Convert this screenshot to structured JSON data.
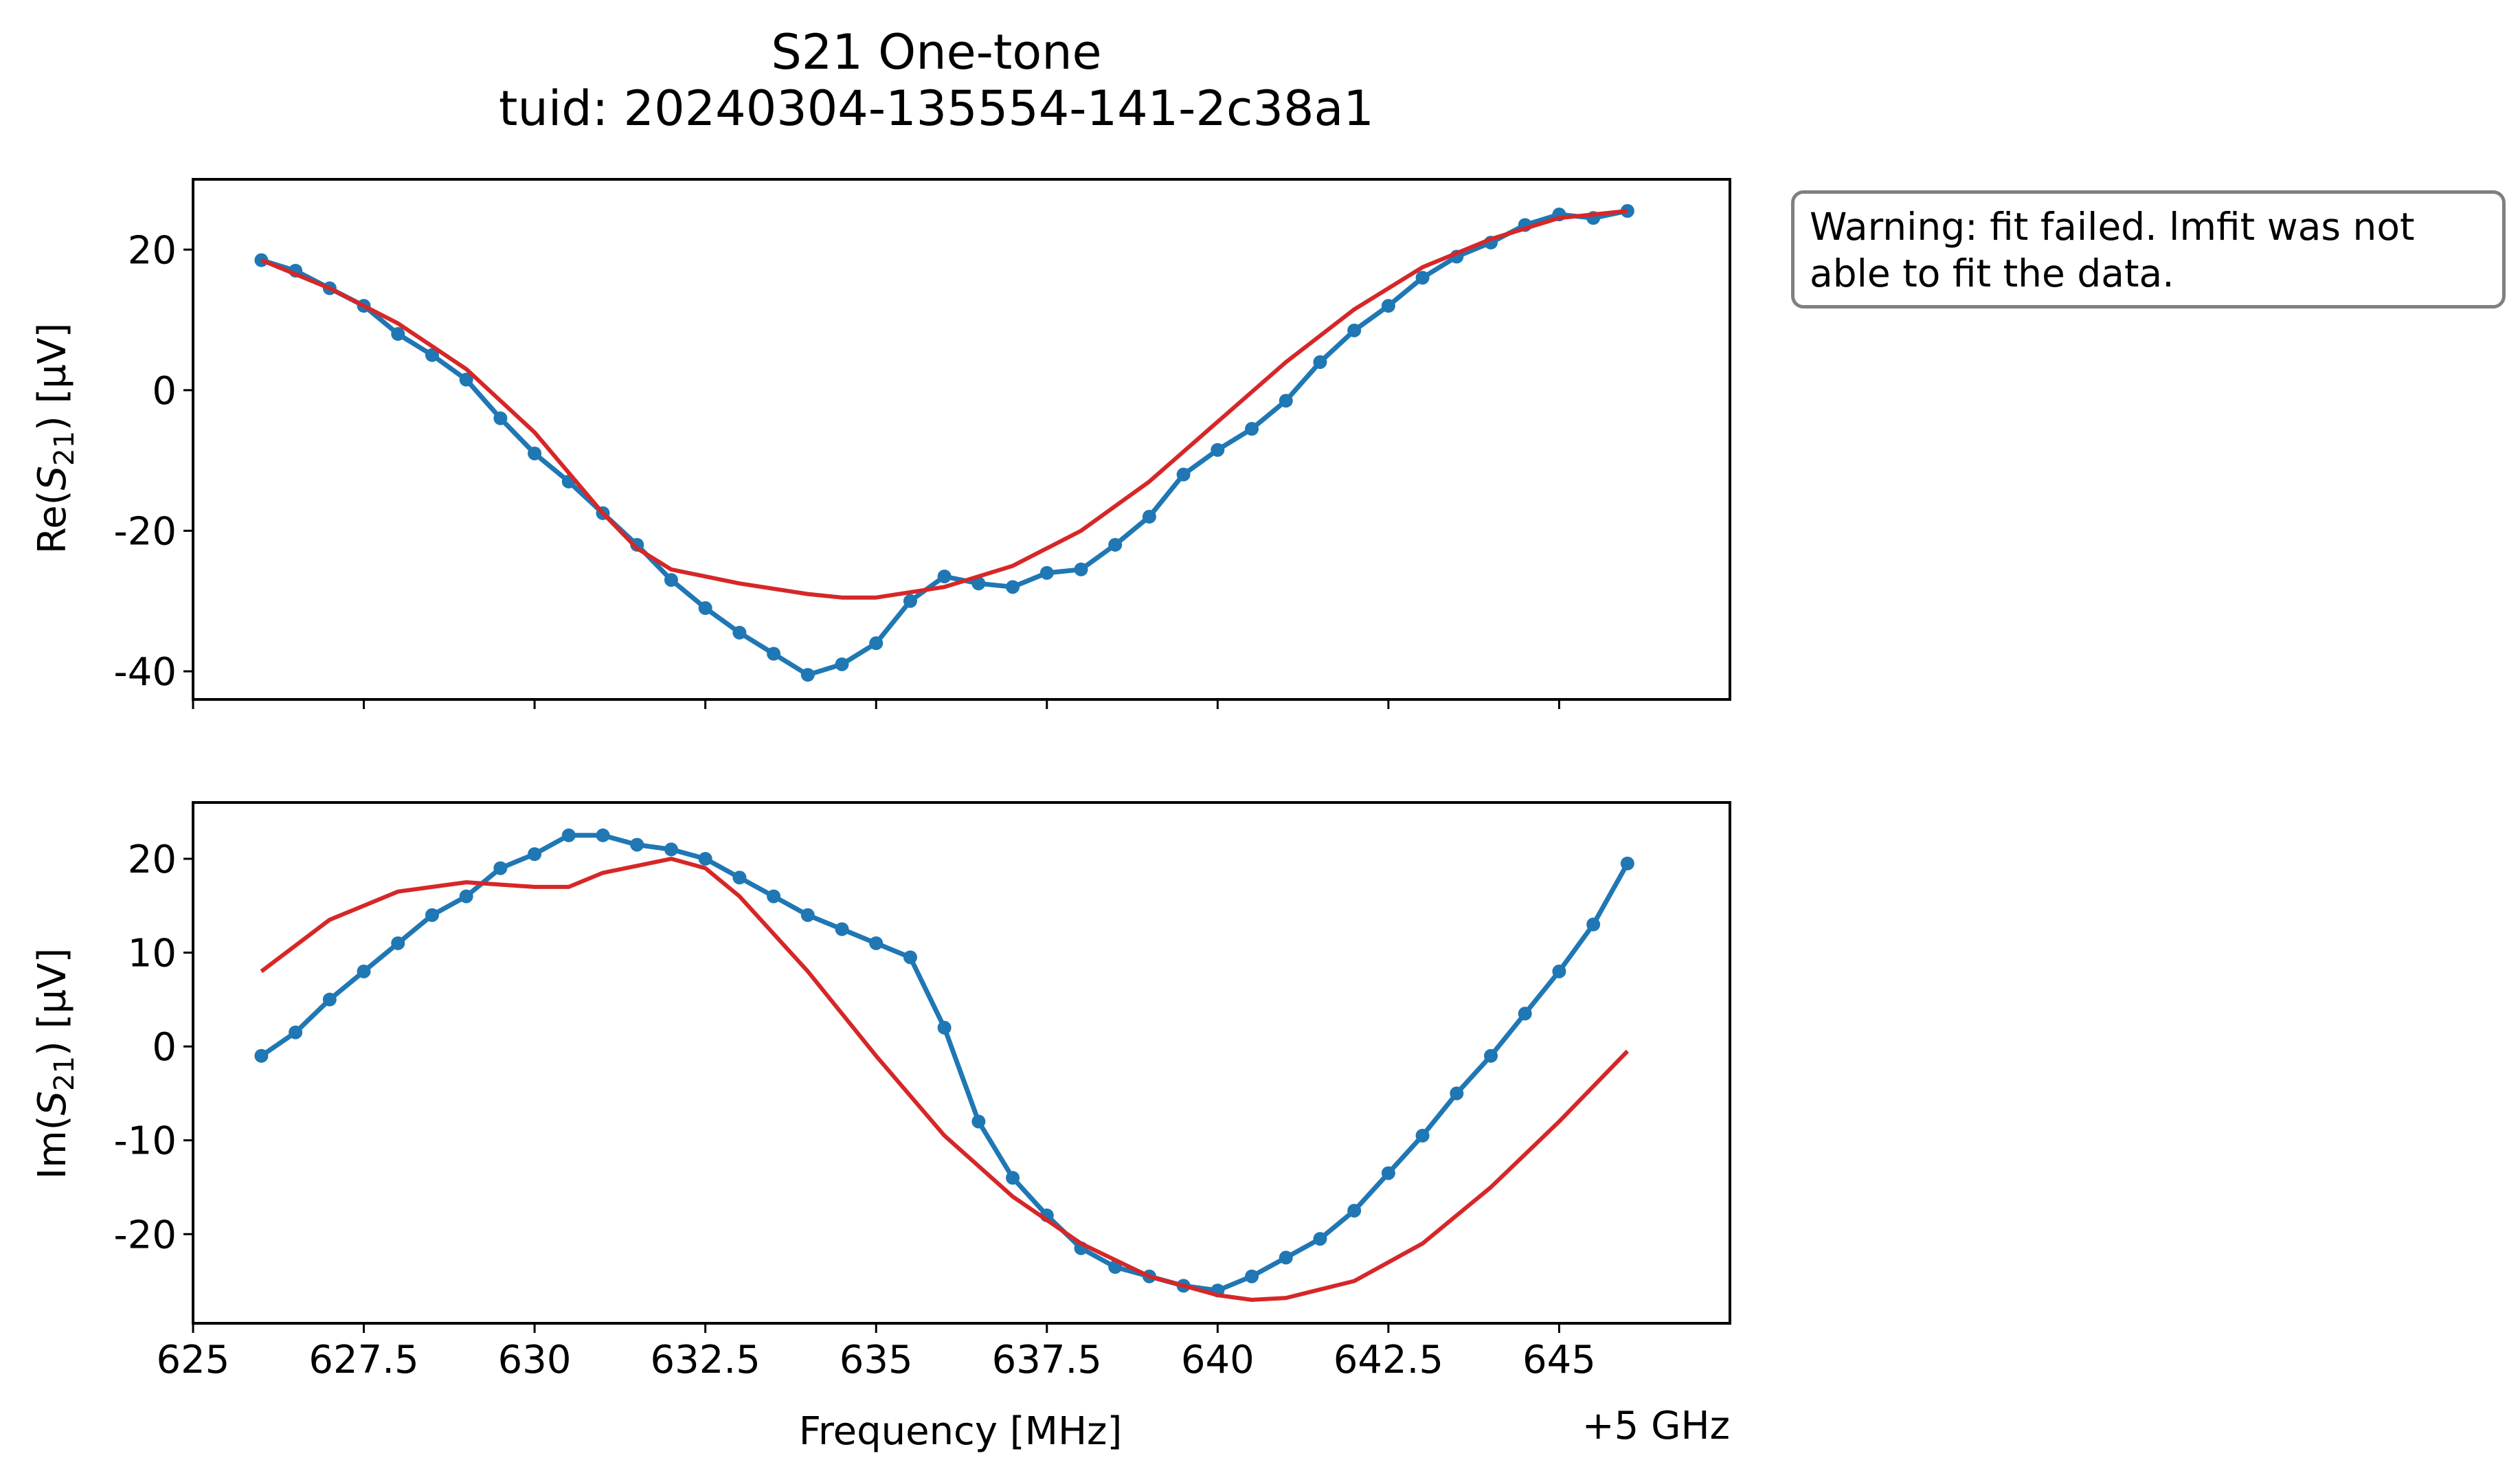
{
  "title": [
    "S21 One-tone",
    "tuid: 20240304-135554-141-2c38a1"
  ],
  "warning": "Warning: fit failed. lmfit was not able to fit the data.",
  "x_offset_label": "+5 GHz",
  "colors": {
    "data": "#1f77b4",
    "fit": "#d62728"
  },
  "chart_data": [
    {
      "type": "line",
      "panel": "top",
      "ylabel": "Re(S21) [µV]",
      "xlim": [
        625,
        647.5
      ],
      "ylim": [
        -44,
        30
      ],
      "xticks": [
        625,
        627.5,
        630,
        632.5,
        635,
        637.5,
        640,
        642.5,
        645
      ],
      "xtick_labels": [],
      "yticks": [
        20,
        0,
        -20,
        -40
      ],
      "ytick_labels": [
        "20",
        "0",
        "-20",
        "-40"
      ],
      "grid": false,
      "series": [
        {
          "role": "data",
          "marker": "circle",
          "x": [
            626.0,
            626.5,
            627.0,
            627.5,
            628.0,
            628.5,
            629.0,
            629.5,
            630.0,
            630.5,
            631.0,
            631.5,
            632.0,
            632.5,
            633.0,
            633.5,
            634.0,
            634.5,
            635.0,
            635.5,
            636.0,
            636.5,
            637.0,
            637.5,
            638.0,
            638.5,
            639.0,
            639.5,
            640.0,
            640.5,
            641.0,
            641.5,
            642.0,
            642.5,
            643.0,
            643.5,
            644.0,
            644.5,
            645.0,
            645.5,
            646.0
          ],
          "y": [
            18.5,
            17.0,
            14.5,
            12.0,
            8.0,
            5.0,
            1.5,
            -4.0,
            -9.0,
            -13.0,
            -17.5,
            -22.0,
            -27.0,
            -31.0,
            -34.5,
            -37.5,
            -40.5,
            -39.0,
            -36.0,
            -30.0,
            -26.5,
            -27.5,
            -28.0,
            -26.0,
            -25.5,
            -22.0,
            -18.0,
            -12.0,
            -8.5,
            -5.5,
            -1.5,
            4.0,
            8.5,
            12.0,
            16.0,
            19.0,
            21.0,
            23.5,
            25.0,
            24.5,
            25.5
          ]
        },
        {
          "role": "fit",
          "marker": "none",
          "x": [
            626.0,
            627.0,
            628.0,
            629.0,
            630.0,
            631.0,
            631.5,
            632.0,
            633.0,
            634.0,
            634.5,
            635.0,
            636.0,
            637.0,
            638.0,
            639.0,
            640.0,
            641.0,
            642.0,
            643.0,
            644.0,
            645.0,
            646.0
          ],
          "y": [
            18.5,
            14.5,
            9.5,
            3.0,
            -6.0,
            -17.5,
            -22.5,
            -25.5,
            -27.5,
            -29.0,
            -29.5,
            -29.5,
            -28.0,
            -25.0,
            -20.0,
            -13.0,
            -4.5,
            4.0,
            11.5,
            17.5,
            21.5,
            24.5,
            25.5
          ]
        }
      ]
    },
    {
      "type": "line",
      "panel": "bottom",
      "ylabel": "Im(S21) [µV]",
      "xlabel": "Frequency [MHz]",
      "xlim": [
        625,
        647.5
      ],
      "ylim": [
        -29.5,
        26
      ],
      "xticks": [
        625,
        627.5,
        630,
        632.5,
        635,
        637.5,
        640,
        642.5,
        645
      ],
      "xtick_labels": [
        "625",
        "627.5",
        "630",
        "632.5",
        "635",
        "637.5",
        "640",
        "642.5",
        "645"
      ],
      "yticks": [
        20,
        10,
        0,
        -10,
        -20
      ],
      "ytick_labels": [
        "20",
        "10",
        "0",
        "-10",
        "-20"
      ],
      "grid": false,
      "series": [
        {
          "role": "data",
          "marker": "circle",
          "x": [
            626.0,
            626.5,
            627.0,
            627.5,
            628.0,
            628.5,
            629.0,
            629.5,
            630.0,
            630.5,
            631.0,
            631.5,
            632.0,
            632.5,
            633.0,
            633.5,
            634.0,
            634.5,
            635.0,
            635.5,
            636.0,
            636.5,
            637.0,
            637.5,
            638.0,
            638.5,
            639.0,
            639.5,
            640.0,
            640.5,
            641.0,
            641.5,
            642.0,
            642.5,
            643.0,
            643.5,
            644.0,
            644.5,
            645.0,
            645.5,
            646.0
          ],
          "y": [
            -1.0,
            1.5,
            5.0,
            8.0,
            11.0,
            14.0,
            16.0,
            19.0,
            20.5,
            22.5,
            22.5,
            21.5,
            21.0,
            20.0,
            18.0,
            16.0,
            14.0,
            12.5,
            11.0,
            9.5,
            2.0,
            -8.0,
            -14.0,
            -18.0,
            -21.5,
            -23.5,
            -24.5,
            -25.5,
            -26.0,
            -24.5,
            -22.5,
            -20.5,
            -17.5,
            -13.5,
            -9.5,
            -5.0,
            -1.0,
            3.5,
            8.0,
            13.0,
            19.5
          ]
        },
        {
          "role": "fit",
          "marker": "none",
          "x": [
            626.0,
            627.0,
            628.0,
            629.0,
            630.0,
            630.5,
            631.0,
            632.0,
            632.5,
            633.0,
            634.0,
            635.0,
            636.0,
            637.0,
            638.0,
            639.0,
            640.0,
            640.5,
            641.0,
            642.0,
            643.0,
            644.0,
            645.0,
            646.0
          ],
          "y": [
            8.0,
            13.5,
            16.5,
            17.5,
            17.0,
            17.0,
            18.5,
            20.0,
            19.0,
            16.0,
            8.0,
            -1.0,
            -9.5,
            -16.0,
            -21.0,
            -24.5,
            -26.5,
            -27.0,
            -26.8,
            -25.0,
            -21.0,
            -15.0,
            -8.0,
            -0.5
          ]
        }
      ]
    }
  ]
}
